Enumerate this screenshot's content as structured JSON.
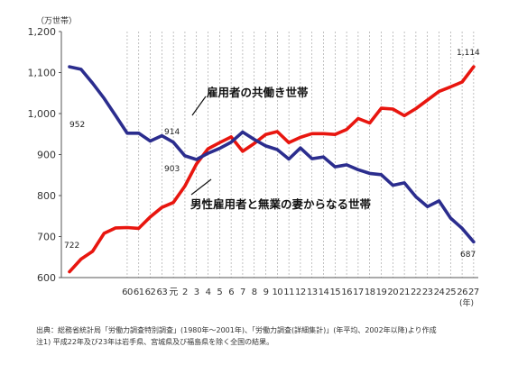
{
  "chart_data": {
    "type": "line",
    "y_unit": "（万世帯）",
    "x_unit": "(年)",
    "ylim": [
      600,
      1200
    ],
    "y_ticks": [
      "600",
      "700",
      "800",
      "900",
      "1,000",
      "1,100",
      "1,200"
    ],
    "x_tick_labels": [
      "60",
      "61",
      "62",
      "63",
      "元",
      "2",
      "3",
      "4",
      "5",
      "6",
      "7",
      "8",
      "9",
      "10",
      "11",
      "12",
      "13",
      "14",
      "15",
      "16",
      "17",
      "18",
      "19",
      "20",
      "21",
      "22",
      "23",
      "24",
      "25",
      "26",
      "27"
    ],
    "grid": "vertical dashed lines",
    "series": [
      {
        "name": "雇用者の共働き世帯",
        "color": "#e8160f",
        "x": [
          1980,
          1981,
          1982,
          1983,
          1984,
          1985,
          1986,
          1987,
          1988,
          1989,
          1990,
          1991,
          1992,
          1993,
          1994,
          1995,
          1996,
          1997,
          1998,
          1999,
          2000,
          2001,
          2002,
          2003,
          2004,
          2005,
          2006,
          2007,
          2008,
          2009,
          2010,
          2011,
          2012,
          2013,
          2014,
          2015
        ],
        "values": [
          614,
          645,
          664,
          708,
          721,
          722,
          720,
          748,
          771,
          783,
          823,
          877,
          914,
          929,
          943,
          908,
          927,
          949,
          956,
          929,
          942,
          951,
          951,
          949,
          961,
          988,
          977,
          1013,
          1011,
          995,
          1012,
          1033,
          1054,
          1065,
          1077,
          1114
        ]
      },
      {
        "name": "男性雇用者と無業の妻からなる世帯",
        "color": "#2b2d8e",
        "x": [
          1980,
          1981,
          1982,
          1983,
          1984,
          1985,
          1986,
          1987,
          1988,
          1989,
          1990,
          1991,
          1992,
          1993,
          1994,
          1995,
          1996,
          1997,
          1998,
          1999,
          2000,
          2001,
          2002,
          2003,
          2004,
          2005,
          2006,
          2007,
          2008,
          2009,
          2010,
          2011,
          2012,
          2013,
          2014,
          2015
        ],
        "values": [
          1114,
          1108,
          1074,
          1037,
          995,
          952,
          952,
          933,
          946,
          930,
          897,
          888,
          903,
          915,
          930,
          955,
          937,
          921,
          912,
          889,
          916,
          890,
          894,
          870,
          875,
          863,
          854,
          851,
          825,
          831,
          797,
          773,
          787,
          745,
          720,
          687
        ]
      }
    ],
    "data_labels": [
      "952",
      "722",
      "914",
      "903",
      "1,114",
      "687"
    ],
    "annotations": [
      "雇用者の共働き世帯",
      "男性雇用者と無業の妻からなる世帯"
    ]
  },
  "source_lines": [
    "出典：総務省統計局「労働力調査特別調査」(1980年～2001年)、「労働力調査(詳細集計)」(年平均、2002年以降)より作成",
    "注1) 平成22年及び23年は岩手県、宮城県及び福島県を除く全国の結果。"
  ]
}
